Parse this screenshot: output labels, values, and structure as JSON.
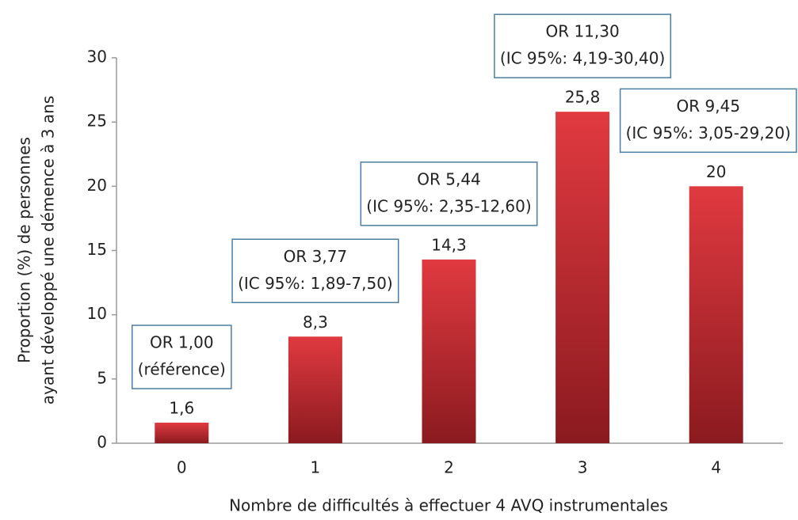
{
  "chart_data": {
    "type": "bar",
    "ylabel": [
      "Proportion (%) de personnes",
      "ayant développé une démence à 3 ans"
    ],
    "xlabel": "Nombre de difficultés à effectuer 4 AVQ instrumentales",
    "categories": [
      "0",
      "1",
      "2",
      "3",
      "4"
    ],
    "values": [
      1.6,
      8.3,
      14.3,
      25.8,
      20
    ],
    "value_labels": [
      "1,6",
      "8,3",
      "14,3",
      "25,8",
      "20"
    ],
    "annotations": [
      [
        "OR 1,00",
        "(référence)"
      ],
      [
        "OR 3,77",
        "(IC 95%: 1,89-7,50)"
      ],
      [
        "OR 5,44",
        "(IC 95%: 2,35-12,60)"
      ],
      [
        "OR 11,30",
        "(IC 95%: 4,19-30,40)"
      ],
      [
        "OR 9,45",
        "(IC 95%: 3,05-29,20)"
      ]
    ],
    "color": "#c8282e",
    "ylim": [
      0,
      30
    ],
    "yticks": [
      0,
      5,
      10,
      15,
      20,
      25,
      30
    ],
    "grid": false
  }
}
